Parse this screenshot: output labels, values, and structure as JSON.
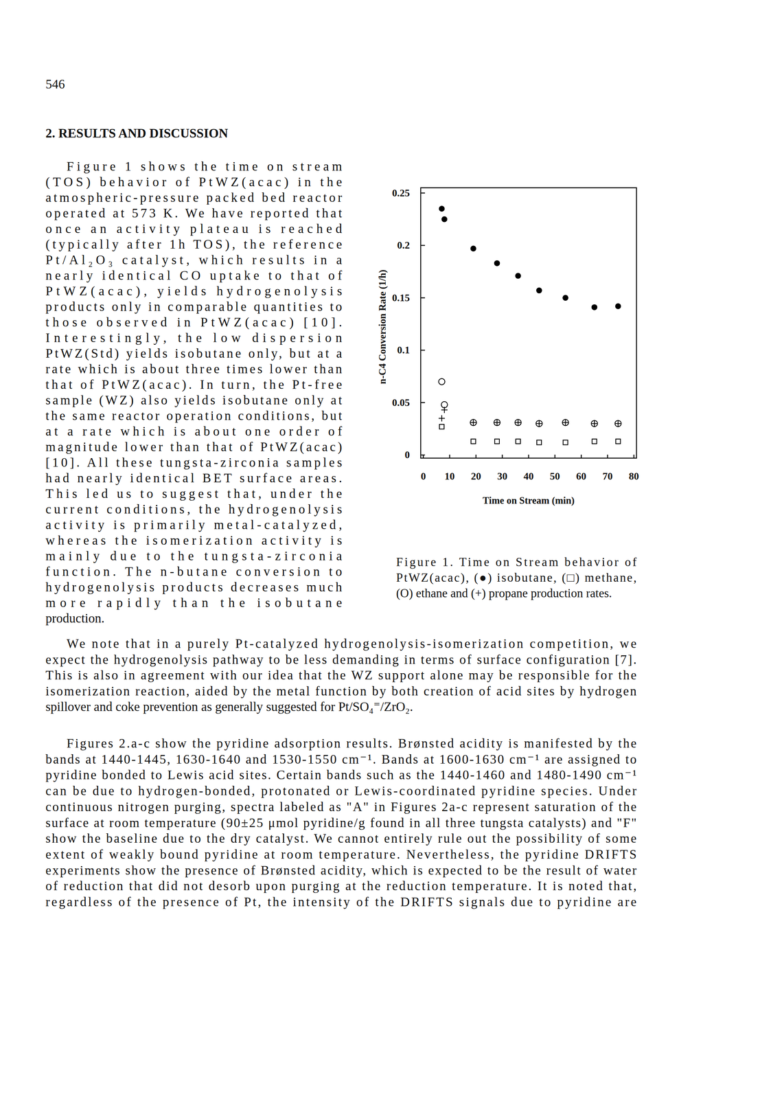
{
  "page": {
    "page_number": "546",
    "heading": "2. RESULTS AND DISCUSSION",
    "left_column": [
      "Figure 1 shows the time on stream",
      "(TOS) behavior of PtWZ(acac) in the",
      "atmospheric-pressure packed bed reactor",
      "operated at 573 K. We have reported that",
      "once an activity plateau is reached",
      "(typically after 1h TOS), the reference",
      "Pt/Al₂O₃ catalyst, which results in a",
      "nearly identical CO uptake to that of",
      "PtWZ(acac), yields hydrogenolysis",
      "products only in comparable quantities to",
      "those observed in PtWZ(acac) [10].",
      "Interestingly, the low dispersion",
      "PtWZ(Std) yields isobutane only, but at a",
      "rate which is about three times lower than",
      "that of PtWZ(acac). In turn, the Pt-free",
      "sample (WZ) also yields isobutane only at",
      "the same reactor operation conditions, but",
      "at a rate which is about one order of",
      "magnitude lower than that of PtWZ(acac)",
      "[10]. All these tungsta-zirconia samples",
      "had nearly identical BET surface areas.",
      "This led us to suggest that, under the",
      "current conditions, the hydrogenolysis",
      "activity is primarily metal-catalyzed,",
      "whereas the isomerization activity is",
      "mainly due to the tungsta-zirconia",
      "function. The n-butane conversion to",
      "hydrogenolysis products decreases much",
      "more rapidly than the isobutane",
      "production."
    ],
    "figure_caption": [
      "Figure 1. Time on Stream behavior of",
      "PtWZ(acac), (●) isobutane, (□) methane,",
      "(O) ethane and (+) propane production rates."
    ],
    "paragraphs": [
      [
        "We note that in a purely Pt-catalyzed hydrogenolysis-isomerization competition, we",
        "expect the hydrogenolysis pathway to be less demanding in terms of surface configuration [7].",
        "This is also in agreement with our idea that the WZ support alone may be responsible for the",
        "isomerization reaction, aided by the metal function by both creation of acid sites by hydrogen",
        "spillover and coke prevention as generally suggested for Pt/SO₄⁼/ZrO₂."
      ],
      [
        "Figures 2.a-c show the pyridine adsorption results. Brønsted acidity is manifested by the",
        "bands at 1440-1445, 1630-1640 and 1530-1550 cm⁻¹. Bands at 1600-1630 cm⁻¹ are assigned to",
        "pyridine bonded to Lewis acid sites. Certain bands such as the 1440-1460 and 1480-1490 cm⁻¹",
        "can be due to hydrogen-bonded, protonated or Lewis-coordinated pyridine species. Under",
        "continuous nitrogen purging, spectra labeled as \"A\" in Figures 2a-c represent saturation of the",
        "surface at room temperature (90±25 μmol pyridine/g found in all three tungsta catalysts) and \"F\"",
        "show the baseline due to the dry catalyst. We cannot entirely rule out the possibility of some",
        "extent of weakly bound pyridine at room temperature. Nevertheless, the pyridine DRIFTS",
        "experiments show the presence of Brønsted acidity, which is expected to be the result of water",
        "of reduction that did not desorb upon purging at the reduction temperature. It is noted that,",
        "regardless of the presence of Pt, the intensity of the DRIFTS signals due to pyridine are"
      ]
    ]
  },
  "chart_data": {
    "type": "scatter",
    "x_label": "Time on Stream (min)",
    "y_label": "n-C4 Conversion Rate (1/h)",
    "xlim": [
      -1,
      81
    ],
    "ylim": [
      -0.003,
      0.255
    ],
    "xticks": [
      0,
      10,
      20,
      30,
      40,
      50,
      60,
      70,
      80
    ],
    "yticks": [
      0,
      0.05,
      0.1,
      0.15,
      0.2,
      0.25
    ],
    "grid": false,
    "series": [
      {
        "name": "isobutane",
        "color": "#000000",
        "marker": "filled_circle",
        "x": [
          7,
          8,
          19,
          28,
          36,
          44,
          54,
          65,
          74
        ],
        "values": [
          0.235,
          0.225,
          0.197,
          0.183,
          0.171,
          0.157,
          0.15,
          0.141,
          0.142
        ]
      },
      {
        "name": "methane",
        "color": "#000000",
        "marker": "square",
        "x": [
          7,
          19,
          28,
          36,
          44,
          54,
          65,
          74
        ],
        "values": [
          0.027,
          0.013,
          0.013,
          0.013,
          0.012,
          0.012,
          0.013,
          0.013
        ]
      },
      {
        "name": "ethane",
        "color": "#000000",
        "marker": "circle",
        "x": [
          7,
          8,
          19,
          28,
          36,
          44,
          54,
          65,
          74
        ],
        "values": [
          0.07,
          0.048,
          0.031,
          0.031,
          0.031,
          0.03,
          0.031,
          0.03,
          0.03
        ]
      },
      {
        "name": "propane",
        "color": "#000000",
        "marker": "plus",
        "x": [
          7,
          8,
          19,
          28,
          36,
          44,
          54,
          65,
          74
        ],
        "values": [
          0.035,
          0.043,
          0.031,
          0.031,
          0.031,
          0.03,
          0.031,
          0.03,
          0.03
        ]
      }
    ]
  }
}
